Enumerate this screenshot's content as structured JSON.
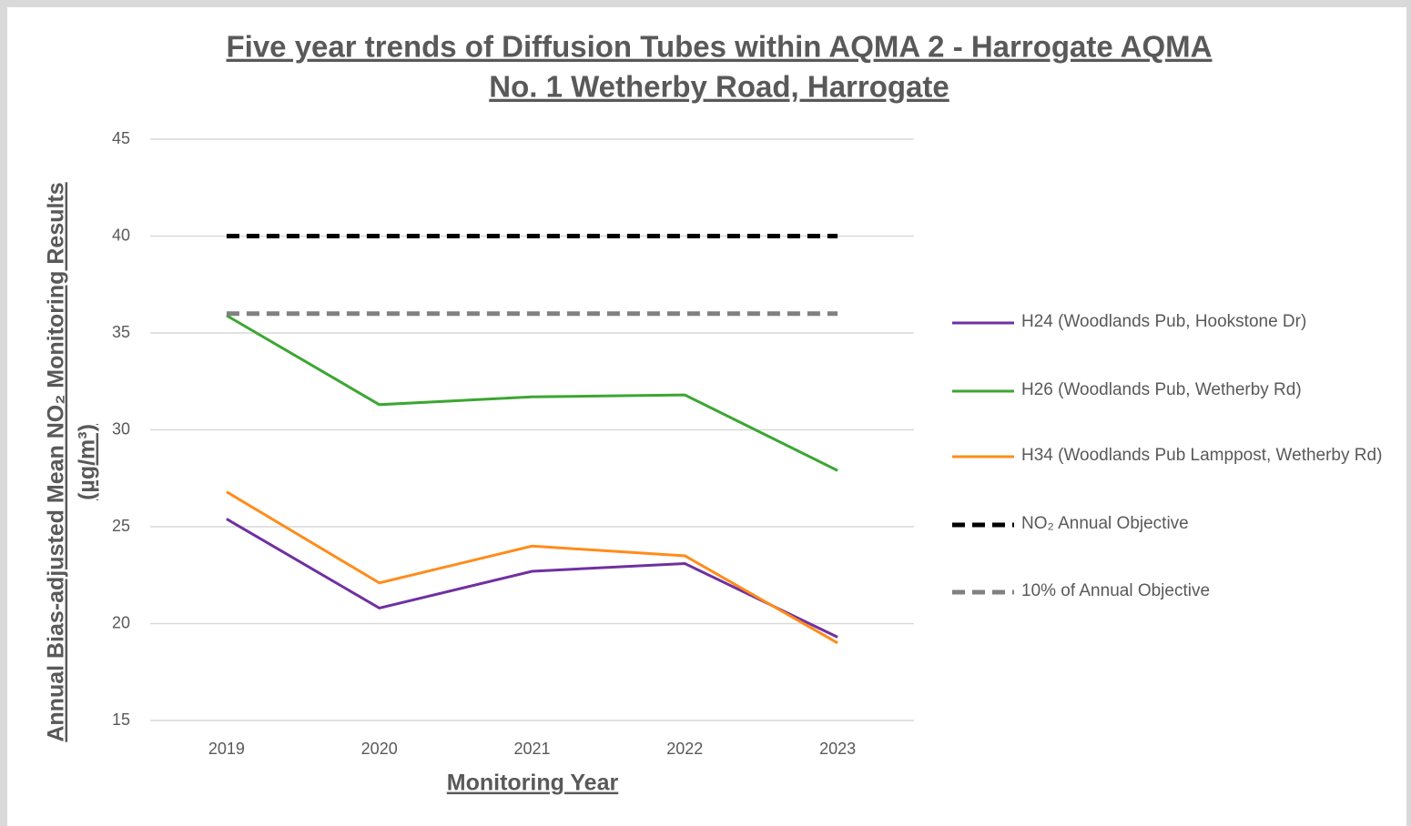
{
  "chart_data": {
    "type": "line",
    "title": [
      "Five year trends of Diffusion Tubes within AQMA 2 - Harrogate AQMA",
      "No. 1 Wetherby Road, Harrogate"
    ],
    "y_label": [
      "Annual Bias-adjusted Mean NO₂ Monitoring Results",
      "(µg/m³)"
    ],
    "x_label": "Monitoring Year",
    "categories": [
      "2019",
      "2020",
      "2021",
      "2022",
      "2023"
    ],
    "ylim": [
      15,
      45
    ],
    "yticks": [
      15,
      20,
      25,
      30,
      35,
      40,
      45
    ],
    "grid": true,
    "legend": "right",
    "series": [
      {
        "name": "H24 (Woodlands Pub, Hookstone Dr)",
        "color": "#7030a0",
        "dashed": false,
        "values": [
          25.4,
          20.8,
          22.7,
          23.1,
          19.3
        ]
      },
      {
        "name": "H26 (Woodlands Pub, Wetherby Rd)",
        "color": "#3ca632",
        "dashed": false,
        "values": [
          35.9,
          31.3,
          31.7,
          31.8,
          27.9
        ]
      },
      {
        "name": "H34 (Woodlands Pub Lamppost, Wetherby Rd)",
        "color": "#ff8c1a",
        "dashed": false,
        "values": [
          26.8,
          22.1,
          24.0,
          23.5,
          19.0
        ]
      },
      {
        "name": "NO₂ Annual Objective",
        "color": "#000000",
        "dashed": true,
        "values": [
          40,
          40,
          40,
          40,
          40
        ]
      },
      {
        "name": "10% of Annual Objective",
        "color": "#808080",
        "dashed": true,
        "values": [
          36,
          36,
          36,
          36,
          36
        ]
      }
    ]
  }
}
